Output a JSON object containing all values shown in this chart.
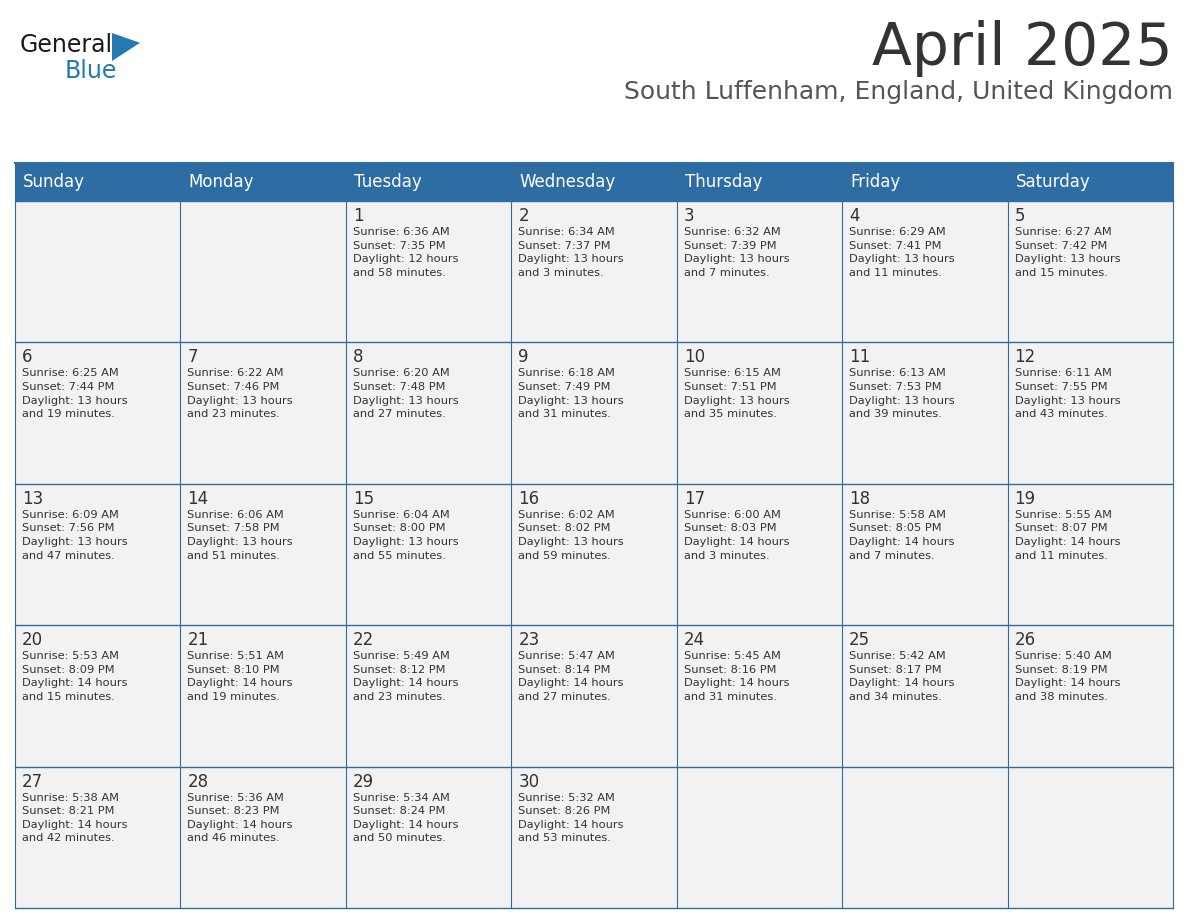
{
  "title": "April 2025",
  "subtitle": "South Luffenham, England, United Kingdom",
  "header_bg": "#2E6DA4",
  "header_text_color": "#FFFFFF",
  "cell_bg": "#F2F2F2",
  "day_number_color": "#333333",
  "cell_text_color": "#333333",
  "grid_line_color": "#2E6DA4",
  "title_color": "#333333",
  "subtitle_color": "#555555",
  "logo_general_color": "#1a1a1a",
  "logo_blue_color": "#2479B0",
  "days_of_week": [
    "Sunday",
    "Monday",
    "Tuesday",
    "Wednesday",
    "Thursday",
    "Friday",
    "Saturday"
  ],
  "weeks": [
    [
      {
        "day": null,
        "info": null
      },
      {
        "day": null,
        "info": null
      },
      {
        "day": 1,
        "info": "Sunrise: 6:36 AM\nSunset: 7:35 PM\nDaylight: 12 hours\nand 58 minutes."
      },
      {
        "day": 2,
        "info": "Sunrise: 6:34 AM\nSunset: 7:37 PM\nDaylight: 13 hours\nand 3 minutes."
      },
      {
        "day": 3,
        "info": "Sunrise: 6:32 AM\nSunset: 7:39 PM\nDaylight: 13 hours\nand 7 minutes."
      },
      {
        "day": 4,
        "info": "Sunrise: 6:29 AM\nSunset: 7:41 PM\nDaylight: 13 hours\nand 11 minutes."
      },
      {
        "day": 5,
        "info": "Sunrise: 6:27 AM\nSunset: 7:42 PM\nDaylight: 13 hours\nand 15 minutes."
      }
    ],
    [
      {
        "day": 6,
        "info": "Sunrise: 6:25 AM\nSunset: 7:44 PM\nDaylight: 13 hours\nand 19 minutes."
      },
      {
        "day": 7,
        "info": "Sunrise: 6:22 AM\nSunset: 7:46 PM\nDaylight: 13 hours\nand 23 minutes."
      },
      {
        "day": 8,
        "info": "Sunrise: 6:20 AM\nSunset: 7:48 PM\nDaylight: 13 hours\nand 27 minutes."
      },
      {
        "day": 9,
        "info": "Sunrise: 6:18 AM\nSunset: 7:49 PM\nDaylight: 13 hours\nand 31 minutes."
      },
      {
        "day": 10,
        "info": "Sunrise: 6:15 AM\nSunset: 7:51 PM\nDaylight: 13 hours\nand 35 minutes."
      },
      {
        "day": 11,
        "info": "Sunrise: 6:13 AM\nSunset: 7:53 PM\nDaylight: 13 hours\nand 39 minutes."
      },
      {
        "day": 12,
        "info": "Sunrise: 6:11 AM\nSunset: 7:55 PM\nDaylight: 13 hours\nand 43 minutes."
      }
    ],
    [
      {
        "day": 13,
        "info": "Sunrise: 6:09 AM\nSunset: 7:56 PM\nDaylight: 13 hours\nand 47 minutes."
      },
      {
        "day": 14,
        "info": "Sunrise: 6:06 AM\nSunset: 7:58 PM\nDaylight: 13 hours\nand 51 minutes."
      },
      {
        "day": 15,
        "info": "Sunrise: 6:04 AM\nSunset: 8:00 PM\nDaylight: 13 hours\nand 55 minutes."
      },
      {
        "day": 16,
        "info": "Sunrise: 6:02 AM\nSunset: 8:02 PM\nDaylight: 13 hours\nand 59 minutes."
      },
      {
        "day": 17,
        "info": "Sunrise: 6:00 AM\nSunset: 8:03 PM\nDaylight: 14 hours\nand 3 minutes."
      },
      {
        "day": 18,
        "info": "Sunrise: 5:58 AM\nSunset: 8:05 PM\nDaylight: 14 hours\nand 7 minutes."
      },
      {
        "day": 19,
        "info": "Sunrise: 5:55 AM\nSunset: 8:07 PM\nDaylight: 14 hours\nand 11 minutes."
      }
    ],
    [
      {
        "day": 20,
        "info": "Sunrise: 5:53 AM\nSunset: 8:09 PM\nDaylight: 14 hours\nand 15 minutes."
      },
      {
        "day": 21,
        "info": "Sunrise: 5:51 AM\nSunset: 8:10 PM\nDaylight: 14 hours\nand 19 minutes."
      },
      {
        "day": 22,
        "info": "Sunrise: 5:49 AM\nSunset: 8:12 PM\nDaylight: 14 hours\nand 23 minutes."
      },
      {
        "day": 23,
        "info": "Sunrise: 5:47 AM\nSunset: 8:14 PM\nDaylight: 14 hours\nand 27 minutes."
      },
      {
        "day": 24,
        "info": "Sunrise: 5:45 AM\nSunset: 8:16 PM\nDaylight: 14 hours\nand 31 minutes."
      },
      {
        "day": 25,
        "info": "Sunrise: 5:42 AM\nSunset: 8:17 PM\nDaylight: 14 hours\nand 34 minutes."
      },
      {
        "day": 26,
        "info": "Sunrise: 5:40 AM\nSunset: 8:19 PM\nDaylight: 14 hours\nand 38 minutes."
      }
    ],
    [
      {
        "day": 27,
        "info": "Sunrise: 5:38 AM\nSunset: 8:21 PM\nDaylight: 14 hours\nand 42 minutes."
      },
      {
        "day": 28,
        "info": "Sunrise: 5:36 AM\nSunset: 8:23 PM\nDaylight: 14 hours\nand 46 minutes."
      },
      {
        "day": 29,
        "info": "Sunrise: 5:34 AM\nSunset: 8:24 PM\nDaylight: 14 hours\nand 50 minutes."
      },
      {
        "day": 30,
        "info": "Sunrise: 5:32 AM\nSunset: 8:26 PM\nDaylight: 14 hours\nand 53 minutes."
      },
      {
        "day": null,
        "info": null
      },
      {
        "day": null,
        "info": null
      },
      {
        "day": null,
        "info": null
      }
    ]
  ]
}
